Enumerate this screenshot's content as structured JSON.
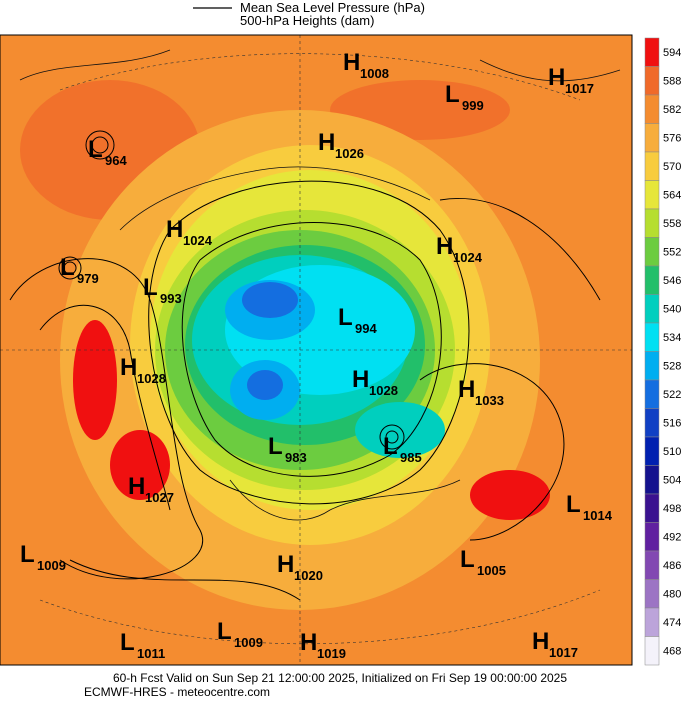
{
  "legend": {
    "line1": "Mean Sea Level Pressure (hPa)",
    "line2": "500-hPa Heights (dam)"
  },
  "colorbar": {
    "levels": [
      594,
      588,
      582,
      576,
      570,
      564,
      558,
      552,
      546,
      540,
      534,
      528,
      522,
      516,
      510,
      504,
      498,
      492,
      486,
      480,
      474,
      468
    ],
    "colors": [
      "#f01010",
      "#f06a2a",
      "#f48c30",
      "#f7ad3c",
      "#f8cc3e",
      "#e6e63a",
      "#b6de30",
      "#6ccc40",
      "#22bf6a",
      "#00cfbe",
      "#00e0f2",
      "#00aef0",
      "#146ee0",
      "#1040c4",
      "#0020b0",
      "#14128e",
      "#3a1290",
      "#6020a0",
      "#8248b2",
      "#9c74c4",
      "#bca4da",
      "#f4f2fa"
    ]
  },
  "centers": [
    {
      "type": "H",
      "value": 1008
    },
    {
      "type": "H",
      "value": 1017
    },
    {
      "type": "L",
      "value": 999
    },
    {
      "type": "L",
      "value": 964
    },
    {
      "type": "H",
      "value": 1026
    },
    {
      "type": "H",
      "value": 1024
    },
    {
      "type": "H",
      "value": 1024
    },
    {
      "type": "L",
      "value": 979
    },
    {
      "type": "L",
      "value": 993
    },
    {
      "type": "L",
      "value": 994
    },
    {
      "type": "H",
      "value": 1028
    },
    {
      "type": "H",
      "value": 1028
    },
    {
      "type": "H",
      "value": 1033
    },
    {
      "type": "L",
      "value": 983
    },
    {
      "type": "L",
      "value": 985
    },
    {
      "type": "H",
      "value": 1027
    },
    {
      "type": "L",
      "value": 1014
    },
    {
      "type": "L",
      "value": 1009
    },
    {
      "type": "L",
      "value": 1005
    },
    {
      "type": "H",
      "value": 1020
    },
    {
      "type": "L",
      "value": 1009
    },
    {
      "type": "H",
      "value": 1019
    },
    {
      "type": "L",
      "value": 1011
    },
    {
      "type": "H",
      "value": 1017
    }
  ],
  "footer": {
    "line1": "60-h Fcst Valid on Sun Sep 21 12:00:00 2025, Initialized on Fri Sep 19 00:00:00 2025",
    "line2": "ECMWF-HRES  - meteocentre.com"
  }
}
